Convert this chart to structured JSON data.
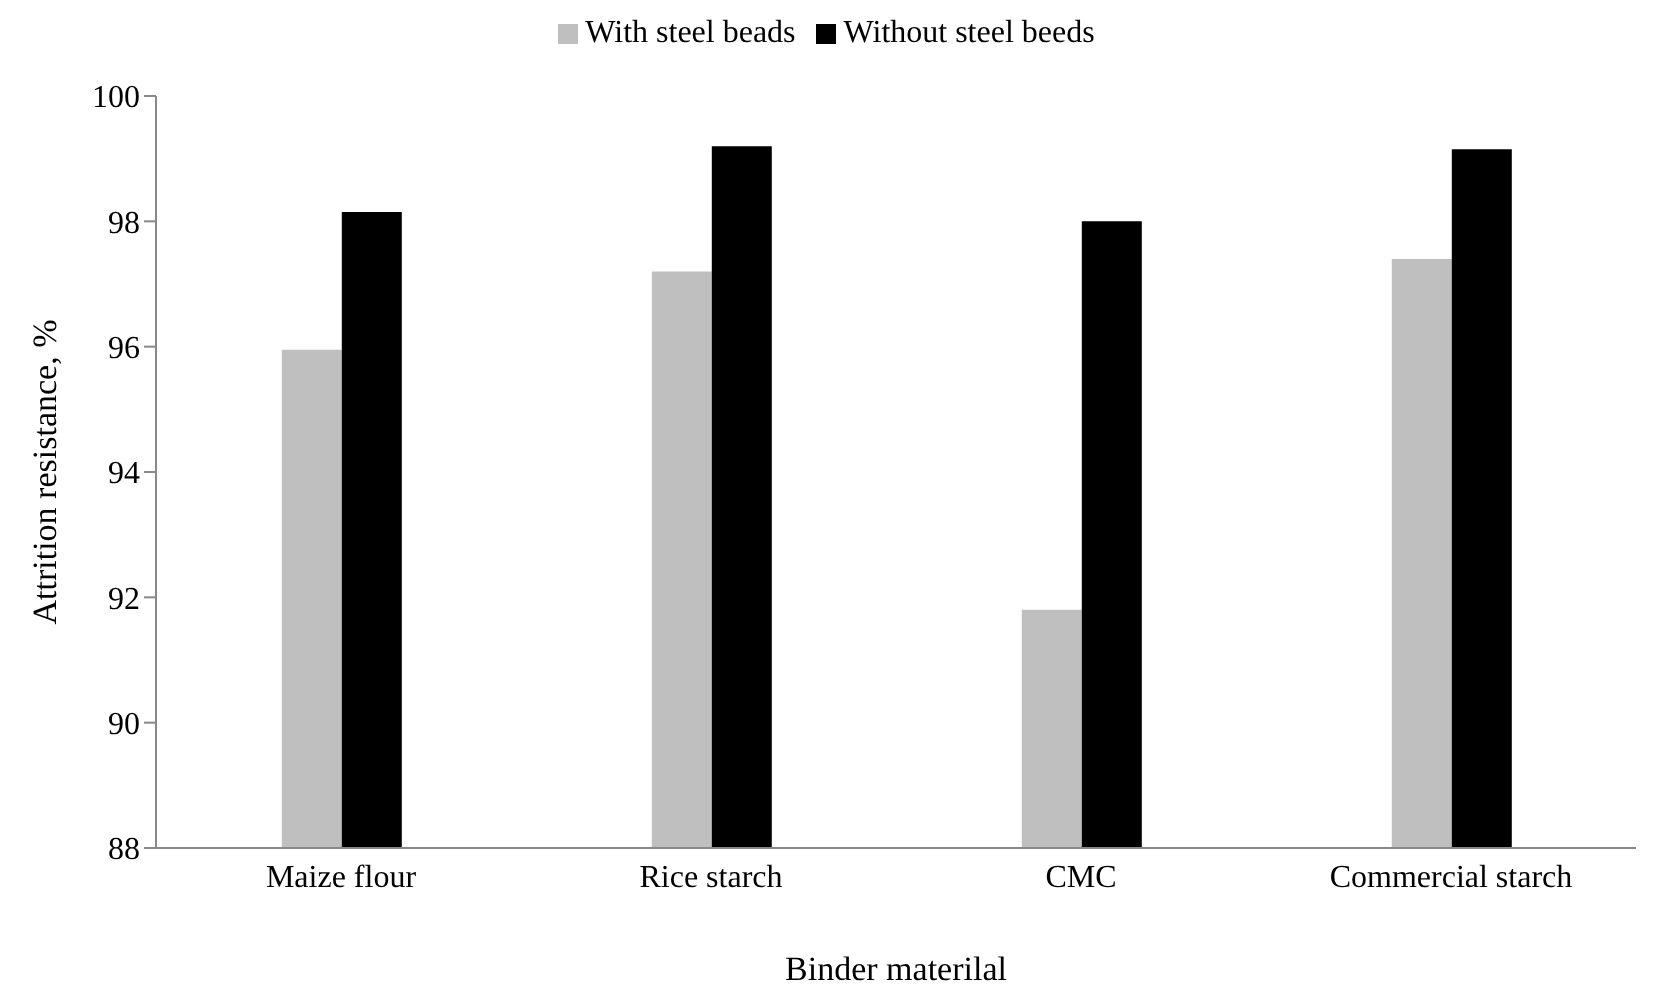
{
  "chart_data": {
    "type": "bar",
    "xlabel": "Binder materilal",
    "ylabel": "Attrition resistance, %",
    "categories": [
      "Maize flour",
      "Rice starch",
      "CMC",
      "Commercial starch"
    ],
    "series": [
      {
        "name": "With steel beads",
        "color": "#bfbfbf",
        "values": [
          95.95,
          97.2,
          91.8,
          97.4
        ]
      },
      {
        "name": "Without steel beeds",
        "color": "#000000",
        "values": [
          98.15,
          99.2,
          98.0,
          99.15
        ]
      }
    ],
    "ylim": [
      88,
      100
    ],
    "yticks": [
      88,
      90,
      92,
      94,
      96,
      98,
      100
    ],
    "grid": false,
    "legend": "top"
  }
}
